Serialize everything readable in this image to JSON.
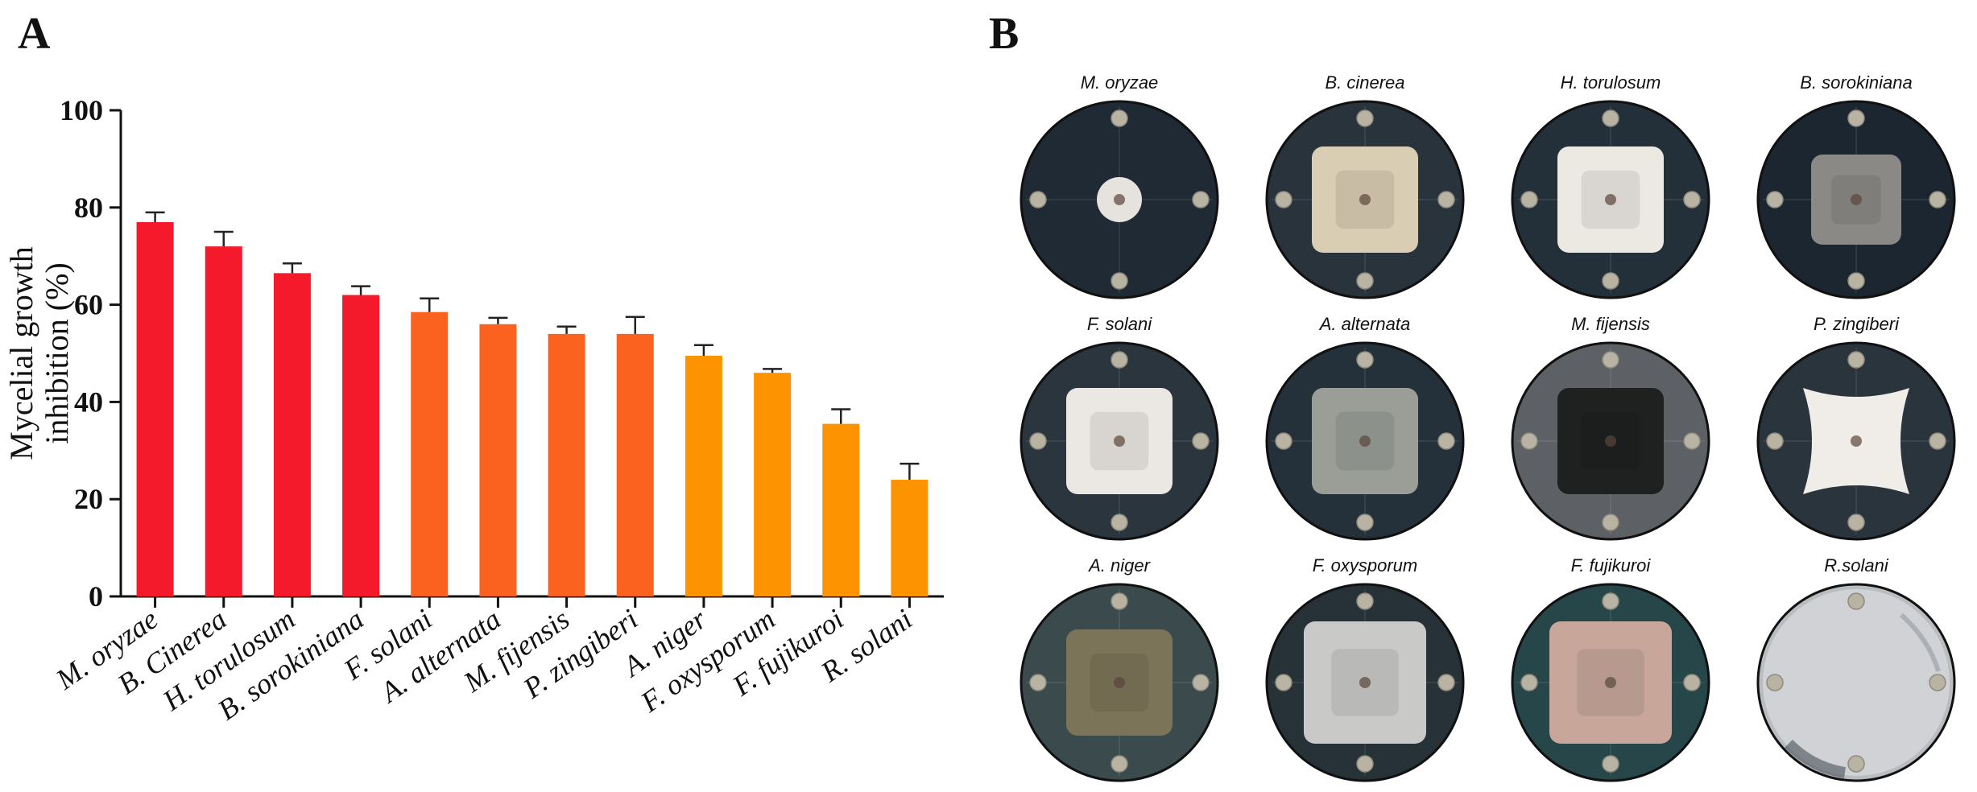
{
  "panels": {
    "a_label": "A",
    "b_label": "B"
  },
  "chart_data": {
    "type": "bar",
    "ylabel_lines": [
      "Mycelial growth",
      "inhibition (%)"
    ],
    "ylim": [
      0,
      100
    ],
    "yticks": [
      "0",
      "20",
      "40",
      "60",
      "80",
      "100"
    ],
    "grid": false,
    "categories": [
      "M. oryzae",
      "B. Cinerea",
      "H. torulosum",
      "B. sorokiniana",
      "F. solani",
      "A. alternata",
      "M. fijensis",
      "P. zingiberi",
      "A. niger",
      "F. oxysporum",
      "F. fujikuroi",
      "R. solani"
    ],
    "values": [
      77,
      72,
      66.5,
      62,
      58.5,
      56,
      54,
      54,
      49.5,
      46,
      35.5,
      24
    ],
    "errors": [
      2.0,
      3.0,
      2.0,
      1.8,
      2.8,
      1.3,
      1.5,
      3.5,
      2.2,
      0.8,
      3.0,
      3.3
    ],
    "colors": [
      "#f5192c",
      "#f5192c",
      "#f5192c",
      "#f5192c",
      "#fb6220",
      "#fb6220",
      "#fb6220",
      "#fb6220",
      "#fd9300",
      "#fd9300",
      "#fd9300",
      "#fd9300"
    ]
  },
  "plates": [
    {
      "title": "M. oryzae",
      "bg": "#1f2a34",
      "colony": "#e6e2dd",
      "colony_size": "small",
      "shape": "round"
    },
    {
      "title": "B. cinerea",
      "bg": "#28333c",
      "colony": "#d9cdb4",
      "colony_size": "large",
      "shape": "square"
    },
    {
      "title": "H. torulosum",
      "bg": "#243039",
      "colony": "#ece8e2",
      "colony_size": "large",
      "shape": "square"
    },
    {
      "title": "B. sorokiniana",
      "bg": "#1c2630",
      "colony": "#8b8985",
      "colony_size": "medium",
      "shape": "square"
    },
    {
      "title": "F. solani",
      "bg": "#2a353d",
      "colony": "#ebe8e3",
      "colony_size": "large",
      "shape": "square"
    },
    {
      "title": "A. alternata",
      "bg": "#25313a",
      "colony": "#9a9e97",
      "colony_size": "large",
      "shape": "square"
    },
    {
      "title": "M. fijensis",
      "bg": "#5d6064",
      "colony": "#1f2020",
      "colony_size": "large",
      "shape": "square"
    },
    {
      "title": "P. zingiberi",
      "bg": "#2a343c",
      "colony": "#f0ede8",
      "colony_size": "large",
      "shape": "star"
    },
    {
      "title": "A. niger",
      "bg": "#3b4a4c",
      "colony": "#7c7458",
      "colony_size": "large",
      "shape": "square"
    },
    {
      "title": "F. oxysporum",
      "bg": "#263138",
      "colony": "#c9c9c7",
      "colony_size": "xlarge",
      "shape": "square"
    },
    {
      "title": "F. fujikuroi",
      "bg": "#27464a",
      "colony": "#c8a79a",
      "colony_size": "xlarge",
      "shape": "square"
    },
    {
      "title": "R.solani",
      "bg": "#b9bdc0",
      "colony": "#d4d6d8",
      "colony_size": "full",
      "shape": "round"
    }
  ]
}
